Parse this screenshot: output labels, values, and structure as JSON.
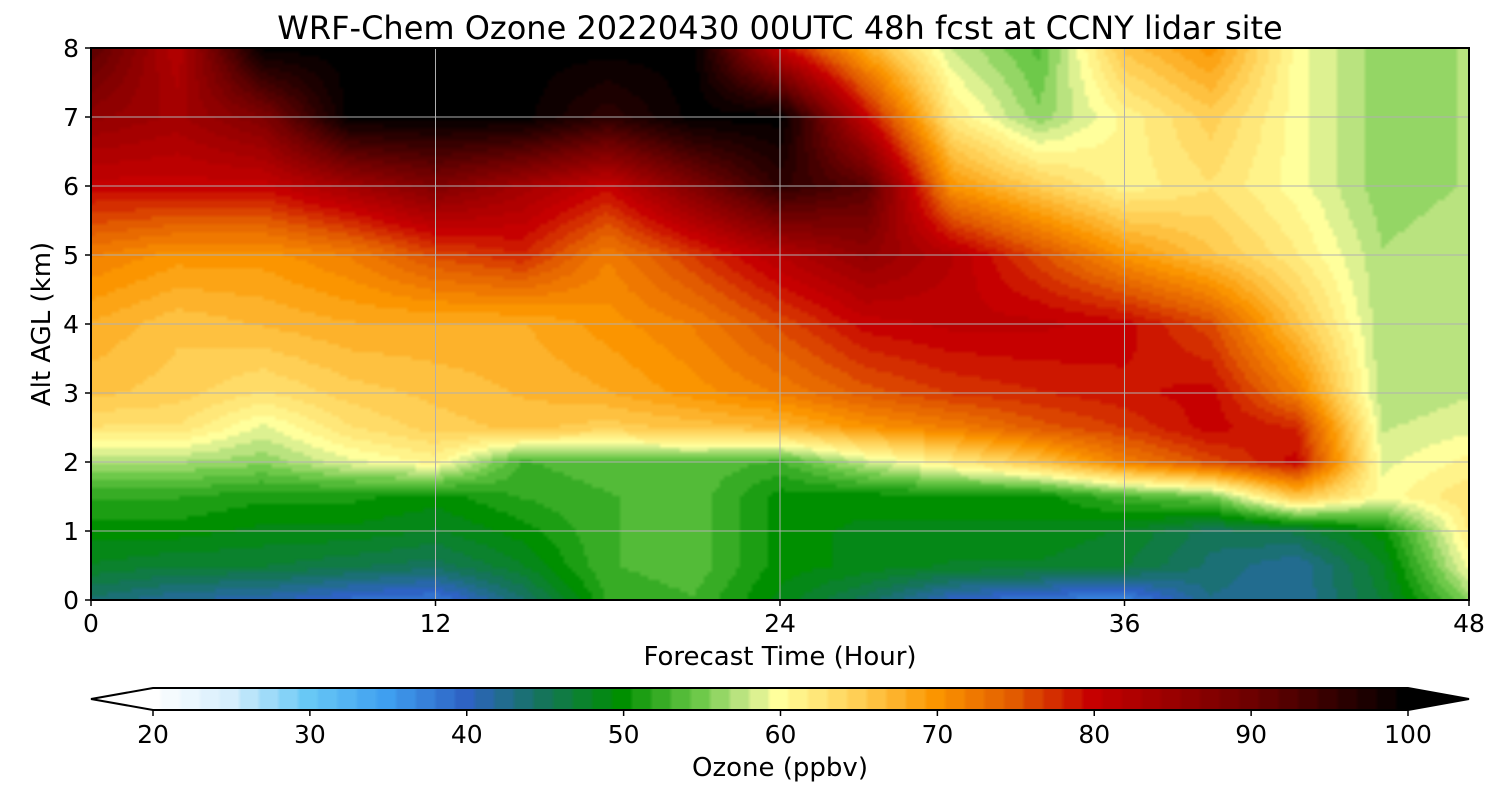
{
  "chart_data": {
    "type": "heatmap",
    "title": "WRF-Chem Ozone  20220430 00UTC 48h fcst at CCNY lidar site",
    "xlabel": "Forecast Time (Hour)",
    "ylabel": "Alt AGL (km)",
    "xlim": [
      0,
      48
    ],
    "ylim": [
      0,
      8
    ],
    "x_ticks": [
      0,
      12,
      24,
      36,
      48
    ],
    "y_ticks": [
      0,
      1,
      2,
      3,
      4,
      5,
      6,
      7,
      8
    ],
    "grid": true,
    "x": [
      0,
      3,
      6,
      9,
      12,
      15,
      18,
      21,
      24,
      27,
      30,
      33,
      36,
      39,
      42,
      45,
      48
    ],
    "y": [
      0,
      0.5,
      1,
      1.5,
      2,
      2.5,
      3,
      4,
      5,
      6,
      7,
      8
    ],
    "z_units": "ppbv",
    "z": [
      [
        44,
        42,
        41,
        39,
        38,
        44,
        52,
        53,
        49,
        45,
        40,
        38,
        37,
        43,
        42,
        47,
        56
      ],
      [
        48,
        47,
        47,
        46,
        45,
        48,
        53,
        54,
        50,
        49,
        48,
        48,
        47,
        44,
        42,
        48,
        60
      ],
      [
        50,
        50,
        49,
        49,
        48,
        50,
        53,
        54,
        50,
        49,
        49,
        49,
        48,
        45,
        46,
        50,
        62
      ],
      [
        52,
        52,
        51,
        51,
        50,
        52,
        53,
        54,
        50,
        50,
        50,
        50,
        53,
        55,
        66,
        60,
        63
      ],
      [
        57,
        57,
        56,
        59,
        61,
        53,
        54,
        54,
        53,
        58,
        62,
        66,
        72,
        76,
        80,
        59,
        61
      ],
      [
        63,
        63,
        59,
        63,
        65,
        66,
        65,
        66,
        67,
        70,
        72,
        75,
        77,
        80,
        78,
        58,
        59
      ],
      [
        66,
        65,
        63,
        65,
        66,
        67,
        68,
        70,
        72,
        75,
        77,
        78,
        79,
        80,
        72,
        57,
        58
      ],
      [
        68,
        66,
        67,
        68,
        68,
        68,
        70,
        72,
        76,
        80,
        81,
        81,
        80,
        76,
        66,
        57,
        58
      ],
      [
        72,
        70,
        70,
        72,
        76,
        78,
        72,
        77,
        82,
        86,
        82,
        76,
        70,
        66,
        62,
        57,
        58
      ],
      [
        80,
        80,
        80,
        84,
        88,
        84,
        80,
        88,
        96,
        92,
        70,
        65,
        61,
        63,
        60,
        56,
        57
      ],
      [
        86,
        84,
        88,
        100,
        100,
        100,
        96,
        100,
        100,
        80,
        62,
        56,
        61,
        65,
        60,
        56,
        57
      ],
      [
        92,
        82,
        100,
        100,
        100,
        100,
        100,
        100,
        80,
        68,
        58,
        54,
        66,
        70,
        60,
        56,
        57
      ]
    ]
  },
  "colorbar": {
    "label": "Ozone  (ppbv)",
    "min": 20,
    "max": 100,
    "ticks": [
      20,
      30,
      40,
      50,
      60,
      70,
      80,
      90,
      100
    ],
    "extend": "both",
    "color_stops": [
      [
        20,
        "#ffffff"
      ],
      [
        25,
        "#d6eefc"
      ],
      [
        30,
        "#68c8f5"
      ],
      [
        35,
        "#3f9ff0"
      ],
      [
        40,
        "#2e63c4"
      ],
      [
        45,
        "#15745a"
      ],
      [
        50,
        "#008f00"
      ],
      [
        55,
        "#6ec94a"
      ],
      [
        58,
        "#c8e88a"
      ],
      [
        60,
        "#ffff9c"
      ],
      [
        65,
        "#ffcf55"
      ],
      [
        70,
        "#fb9500"
      ],
      [
        75,
        "#e25b00"
      ],
      [
        80,
        "#c60000"
      ],
      [
        90,
        "#6e0000"
      ],
      [
        100,
        "#000000"
      ]
    ]
  }
}
